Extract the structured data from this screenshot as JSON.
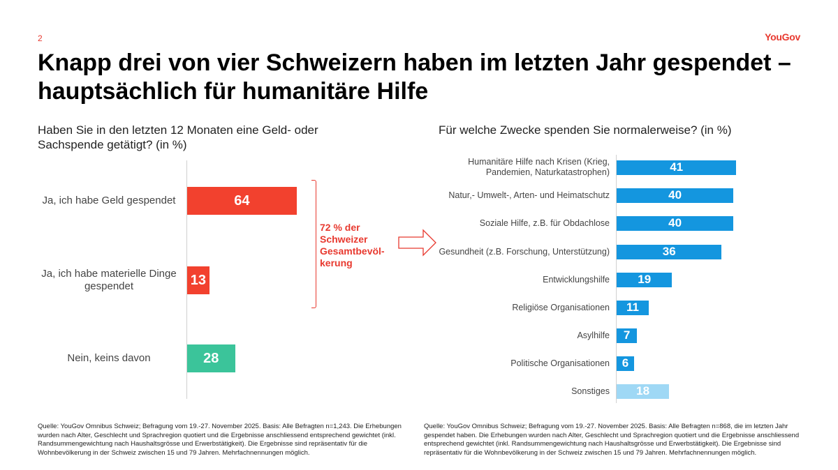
{
  "page_number": "2",
  "brand": "YouGov",
  "title": "Knapp drei von vier Schweizern haben im letzten Jahr gespendet – hauptsächlich für humanitäre Hilfe",
  "colors": {
    "red": "#f2412e",
    "green": "#3bc49a",
    "blue": "#1496df",
    "light_blue": "#9fd8f5",
    "accent": "#e8392f"
  },
  "note": "72 % der Schweizer Gesamtbevöl-kerung",
  "chart_data": [
    {
      "type": "bar",
      "orientation": "horizontal",
      "title": "Haben Sie in den letzten 12 Monaten eine Geld- oder Sachspende getätigt? (in %)",
      "categories": [
        "Ja, ich habe Geld gespendet",
        "Ja, ich habe materielle Dinge gespendet",
        "Nein, keins davon"
      ],
      "values": [
        64,
        13,
        28
      ],
      "value_labels": [
        "64",
        "13",
        "28"
      ],
      "bar_colors": [
        "#f2412e",
        "#f2412e",
        "#3bc49a"
      ],
      "xlim": [
        0,
        100
      ],
      "grid": false
    },
    {
      "type": "bar",
      "orientation": "horizontal",
      "title": "Für welche Zwecke spenden Sie normalerweise? (in %)",
      "categories": [
        "Humanitäre Hilfe nach Krisen (Krieg, Pandemien, Naturkatastrophen)",
        "Natur,- Umwelt-, Arten- und Heimatschutz",
        "Soziale Hilfe, z.B. für Obdachlose",
        "Gesundheit (z.B. Forschung, Unterstützung)",
        "Entwicklungshilfe",
        "Religiöse Organisationen",
        "Asylhilfe",
        "Politische Organisationen",
        "Sonstiges"
      ],
      "values": [
        41,
        40,
        40,
        36,
        19,
        11,
        7,
        6,
        18
      ],
      "value_labels": [
        "41",
        "40",
        "40",
        "36",
        "19",
        "11",
        "7",
        "6",
        "18"
      ],
      "bar_colors": [
        "#1496df",
        "#1496df",
        "#1496df",
        "#1496df",
        "#1496df",
        "#1496df",
        "#1496df",
        "#1496df",
        "#9fd8f5"
      ],
      "xlim": [
        0,
        100
      ],
      "grid": false
    }
  ],
  "sources": {
    "left": "Quelle: YouGov Omnibus Schweiz; Befragung vom 19.-27. November 2025. Basis: Alle Befragten n=1,243. Die Erhebungen wurden nach Alter, Geschlecht und Sprachregion quotiert und die Ergebnisse anschliessend entsprechend gewichtet (inkl. Randsummengewichtung nach Haushaltsgrösse und Erwerbstätigkeit). Die Ergebnisse sind repräsentativ für die Wohnbevölkerung in der Schweiz zwischen 15 und 79 Jahren. Mehrfachnennungen möglich.",
    "right": "Quelle: YouGov Omnibus Schweiz; Befragung vom 19.-27. November 2025. Basis: Alle Befragten n=868, die im letzten Jahr gespendet haben. Die Erhebungen wurden nach Alter, Geschlecht und Sprachregion quotiert und die Ergebnisse anschliessend entsprechend gewichtet (inkl. Randsummengewichtung nach Haushaltsgrösse und Erwerbstätigkeit). Die Ergebnisse sind repräsentativ für die Wohnbevölkerung in der Schweiz zwischen 15 und 79 Jahren. Mehrfachnennungen möglich."
  }
}
